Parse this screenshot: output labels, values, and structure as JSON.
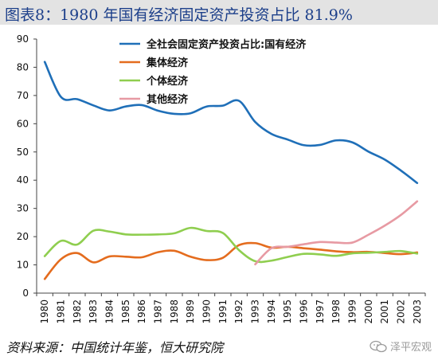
{
  "header": {
    "title": "图表8：1980 年国有经济固定资产投资占比 81.9%"
  },
  "footer": {
    "source": "资料来源：中国统计年鉴，恒大研究院",
    "watermark": "泽平宏观"
  },
  "icons": {
    "watermark_icon": "wechat-icon"
  },
  "chart_data": {
    "type": "line",
    "title": "",
    "xlabel": "",
    "ylabel": "",
    "ylim": [
      0,
      90
    ],
    "yticks": [
      0,
      10,
      20,
      30,
      40,
      50,
      60,
      70,
      80,
      90
    ],
    "grid": false,
    "legend_position": "top-right",
    "x": [
      "1980",
      "1981",
      "1982",
      "1983",
      "1984",
      "1985",
      "1986",
      "1987",
      "1988",
      "1989",
      "1990",
      "1991",
      "1992",
      "1993",
      "1994",
      "1995",
      "1996",
      "1997",
      "1998",
      "1999",
      "2000",
      "2001",
      "2002",
      "2003"
    ],
    "series": [
      {
        "name": "全社会固定资产投资占比:国有经济",
        "color": "#1f6fb8",
        "values": [
          81.9,
          69.5,
          68.7,
          66.5,
          64.7,
          66.1,
          66.6,
          64.6,
          63.5,
          63.7,
          66.1,
          66.4,
          68.1,
          60.6,
          56.4,
          54.4,
          52.4,
          52.5,
          54.1,
          53.4,
          50.1,
          47.3,
          43.4,
          39.0
        ]
      },
      {
        "name": "集体经济",
        "color": "#e46c1e",
        "values": [
          5.0,
          12.0,
          14.2,
          10.9,
          13.0,
          12.9,
          12.7,
          14.5,
          15.0,
          12.9,
          11.7,
          12.5,
          17.0,
          17.7,
          16.1,
          16.4,
          15.9,
          15.4,
          14.8,
          14.5,
          14.6,
          14.2,
          13.8,
          14.4
        ]
      },
      {
        "name": "个体经济",
        "color": "#8fce4f",
        "values": [
          13.1,
          18.5,
          17.2,
          22.1,
          21.8,
          20.8,
          20.7,
          20.8,
          21.2,
          23.1,
          22.0,
          21.3,
          15.2,
          11.3,
          11.5,
          12.8,
          13.9,
          13.7,
          13.2,
          14.1,
          14.3,
          14.6,
          14.9,
          14.0
        ]
      },
      {
        "name": "其他经济",
        "color": "#e79aa3",
        "values": [
          null,
          null,
          null,
          null,
          null,
          null,
          null,
          null,
          null,
          null,
          null,
          null,
          null,
          10.2,
          15.9,
          16.4,
          17.3,
          18.1,
          17.9,
          17.9,
          20.7,
          23.9,
          27.7,
          32.5
        ]
      }
    ]
  }
}
